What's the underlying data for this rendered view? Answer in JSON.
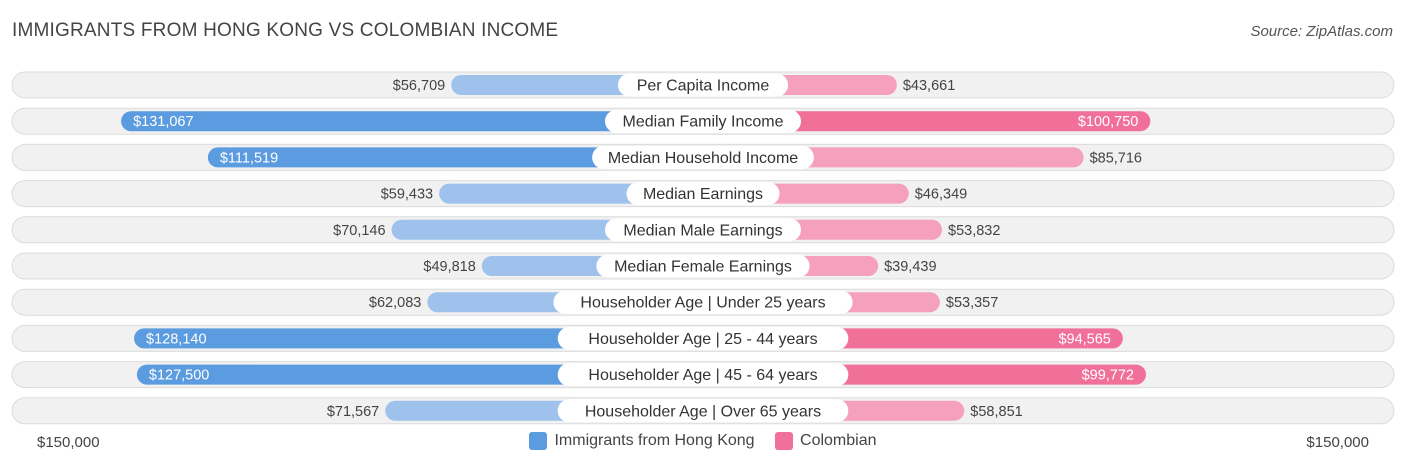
{
  "title": "IMMIGRANTS FROM HONG KONG VS COLOMBIAN INCOME",
  "source": "Source: ZipAtlas.com",
  "colors": {
    "left_dark": "#5b9be0",
    "left_light": "#9ec2ec",
    "right_dark": "#f0709a",
    "right_light": "#f5a0bc",
    "track": "#f1f1f1",
    "track_border": "#dcdcdc"
  },
  "axis": {
    "left_label": "$150,000",
    "right_label": "$150,000"
  },
  "chart_data": {
    "type": "bar",
    "orientation": "horizontal-diverging",
    "max": 150000,
    "categories": [
      "Per Capita Income",
      "Median Family Income",
      "Median Household Income",
      "Median Earnings",
      "Median Male Earnings",
      "Median Female Earnings",
      "Householder Age | Under 25 years",
      "Householder Age | 25 - 44 years",
      "Householder Age | 45 - 64 years",
      "Householder Age | Over 65 years"
    ],
    "series": [
      {
        "name": "Immigrants from Hong Kong",
        "values": [
          56709,
          131067,
          111519,
          59433,
          70146,
          49818,
          62083,
          128140,
          127500,
          71567
        ],
        "labels": [
          "$56,709",
          "$131,067",
          "$111,519",
          "$59,433",
          "$70,146",
          "$49,818",
          "$62,083",
          "$128,140",
          "$127,500",
          "$71,567"
        ]
      },
      {
        "name": "Colombian",
        "values": [
          43661,
          100750,
          85716,
          46349,
          53832,
          39439,
          53357,
          94565,
          99772,
          58851
        ],
        "labels": [
          "$43,661",
          "$100,750",
          "$85,716",
          "$46,349",
          "$53,832",
          "$39,439",
          "$53,357",
          "$94,565",
          "$99,772",
          "$58,851"
        ]
      }
    ],
    "legend_position": "bottom"
  }
}
